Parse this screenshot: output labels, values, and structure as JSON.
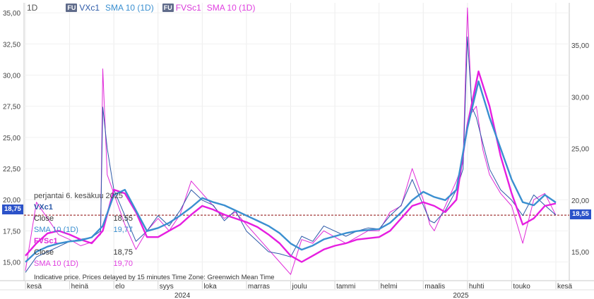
{
  "header": {
    "interval": "1D",
    "badge": "FU",
    "series1_label": "VXc1",
    "series1_sma_label": "SMA 10 (1D)",
    "series2_label": "FVSc1",
    "series2_sma_label": "SMA 10 (1D)"
  },
  "tooltip": {
    "date": "perjantai 6. kesäkuu 2025",
    "series1_name": "VXc1",
    "series1_close_label": "Close",
    "series1_close": "18,55",
    "series1_sma_label": "SMA 10 (1D)",
    "series1_sma": "19,77",
    "series2_name": "FVSc1",
    "series2_close_label": "Close",
    "series2_close": "18,75",
    "series2_sma_label": "SMA 10 (1D)",
    "series2_sma": "19,70"
  },
  "footer_note": "Indicative price. Prices delayed by 15 minutes    Time Zone: Greenwich Mean Time",
  "left_badge": "18,75",
  "right_badge": "18,55",
  "colors": {
    "vx": "#2d5aa8",
    "vx_sma": "#3a8fd0",
    "fvs": "#e02ad9",
    "fvs_sma": "#e61ee0",
    "badge": "#2b52c9",
    "dash": "#a23a3a"
  },
  "chart_data": {
    "type": "line",
    "title": "",
    "left_axis": {
      "series": "FVSc1",
      "range": [
        13.5,
        35.8
      ],
      "ticks": [
        "15,00",
        "17,50",
        "20,00",
        "22,50",
        "25,00",
        "27,50",
        "30,00",
        "32,50",
        "35,00"
      ]
    },
    "right_axis": {
      "series": "VXc1",
      "range": [
        12.2,
        39.1
      ],
      "ticks": [
        "15,00",
        "20,00",
        "25,00",
        "30,00",
        "35,00"
      ]
    },
    "x_axis": {
      "months": [
        "kesä",
        "heinä",
        "elo",
        "syys",
        "loka",
        "marras",
        "joulu",
        "tammi",
        "helmi",
        "maalis",
        "huhti",
        "touko",
        "kesä"
      ],
      "month_positions": [
        0,
        1,
        2,
        3,
        4,
        5,
        6,
        7,
        8,
        9,
        10,
        11,
        12
      ],
      "years": [
        {
          "label": "2024",
          "position": 3.55
        },
        {
          "label": "2025",
          "position": 9.85
        }
      ]
    },
    "reference_lines": {
      "fvs_last": 18.75,
      "vx_last": 18.55
    },
    "series": [
      {
        "name": "FVSc1",
        "axis": "left",
        "x": [
          0,
          0.25,
          0.5,
          0.75,
          1,
          1.25,
          1.5,
          1.7,
          1.75,
          1.85,
          2,
          2.25,
          2.5,
          2.75,
          3,
          3.25,
          3.5,
          3.75,
          4,
          4.25,
          4.5,
          4.75,
          5,
          5.25,
          5.5,
          5.75,
          6,
          6.25,
          6.5,
          6.75,
          7,
          7.25,
          7.5,
          7.75,
          8,
          8.25,
          8.5,
          8.75,
          9,
          9.15,
          9.25,
          9.5,
          9.75,
          9.9,
          10,
          10.1,
          10.2,
          10.35,
          10.5,
          10.75,
          11,
          11.25,
          11.5,
          11.75,
          12
        ],
        "values": [
          14.3,
          19.8,
          18.5,
          17.2,
          16.8,
          16.3,
          16.6,
          17.2,
          30.5,
          22.0,
          20.5,
          18.0,
          16.0,
          17.5,
          18.5,
          17.5,
          18.8,
          21.5,
          20.5,
          19.5,
          18.5,
          19.0,
          18.0,
          17.0,
          16.0,
          15.0,
          14.0,
          16.8,
          16.5,
          17.5,
          17.0,
          16.5,
          17.0,
          17.5,
          17.5,
          19.0,
          19.5,
          22.5,
          20.0,
          18.0,
          17.5,
          19.5,
          21.5,
          23.0,
          35.4,
          27.0,
          27.5,
          24.0,
          22.0,
          20.5,
          19.5,
          16.5,
          20.0,
          20.5,
          18.75
        ]
      },
      {
        "name": "SMA 10 (1D)",
        "axis": "left",
        "x": [
          0,
          0.25,
          0.5,
          0.75,
          1,
          1.25,
          1.5,
          1.75,
          2,
          2.25,
          2.5,
          2.75,
          3,
          3.25,
          3.5,
          3.75,
          4,
          4.25,
          4.5,
          4.75,
          5,
          5.25,
          5.5,
          5.75,
          6,
          6.25,
          6.5,
          6.75,
          7,
          7.25,
          7.5,
          7.75,
          8,
          8.25,
          8.5,
          8.75,
          9,
          9.25,
          9.5,
          9.75,
          10,
          10.25,
          10.5,
          10.75,
          11,
          11.25,
          11.5,
          11.75,
          12
        ],
        "values": [
          15.5,
          16.5,
          17.3,
          17.5,
          17.2,
          16.8,
          16.5,
          17.5,
          20.8,
          20.5,
          19.0,
          17.0,
          17.0,
          17.5,
          18.0,
          18.8,
          19.5,
          19.2,
          18.8,
          18.5,
          18.2,
          17.8,
          17.2,
          16.5,
          15.5,
          15.0,
          15.5,
          16.0,
          16.3,
          16.5,
          16.8,
          16.9,
          17.0,
          17.5,
          18.5,
          19.5,
          19.8,
          19.5,
          19.0,
          20.0,
          26.0,
          30.3,
          27.5,
          23.5,
          20.5,
          18.0,
          18.5,
          19.5,
          19.7
        ]
      },
      {
        "name": "VXc1",
        "axis": "right",
        "x": [
          0,
          0.25,
          0.5,
          0.75,
          1,
          1.25,
          1.5,
          1.7,
          1.75,
          1.85,
          2,
          2.25,
          2.5,
          2.75,
          3,
          3.25,
          3.5,
          3.75,
          4,
          4.25,
          4.5,
          4.75,
          5,
          5.25,
          5.5,
          5.75,
          6,
          6.25,
          6.5,
          6.75,
          7,
          7.25,
          7.5,
          7.75,
          8,
          8.25,
          8.5,
          8.75,
          9,
          9.15,
          9.25,
          9.5,
          9.75,
          9.9,
          10,
          10.1,
          10.2,
          10.35,
          10.5,
          10.75,
          11,
          11.25,
          11.5,
          11.75,
          12
        ],
        "values": [
          13.0,
          14.5,
          15.0,
          15.5,
          16.0,
          16.2,
          16.4,
          17.0,
          29.0,
          25.0,
          21.0,
          18.5,
          16.0,
          17.0,
          18.5,
          17.5,
          19.0,
          21.0,
          20.0,
          19.5,
          18.0,
          19.0,
          17.0,
          16.0,
          15.0,
          14.8,
          14.5,
          16.5,
          16.0,
          17.5,
          17.0,
          16.5,
          17.0,
          17.3,
          17.2,
          18.5,
          19.5,
          22.0,
          19.5,
          18.0,
          17.8,
          19.0,
          21.0,
          23.0,
          35.8,
          29.0,
          28.0,
          25.5,
          23.0,
          21.0,
          20.0,
          18.5,
          20.5,
          19.5,
          18.55
        ]
      },
      {
        "name": "SMA 10 (1D)",
        "axis": "right",
        "x": [
          0,
          0.25,
          0.5,
          0.75,
          1,
          1.25,
          1.5,
          1.75,
          2,
          2.25,
          2.5,
          2.75,
          3,
          3.25,
          3.5,
          3.75,
          4,
          4.25,
          4.5,
          4.75,
          5,
          5.25,
          5.5,
          5.75,
          6,
          6.25,
          6.5,
          6.75,
          7,
          7.25,
          7.5,
          7.75,
          8,
          8.25,
          8.5,
          8.75,
          9,
          9.25,
          9.5,
          9.75,
          10,
          10.25,
          10.5,
          10.75,
          11,
          11.25,
          11.5,
          11.75,
          12
        ],
        "values": [
          14.0,
          15.0,
          15.5,
          15.8,
          16.0,
          16.1,
          16.4,
          17.5,
          20.5,
          21.0,
          19.0,
          17.0,
          17.3,
          17.8,
          18.5,
          19.3,
          20.2,
          19.8,
          19.5,
          19.0,
          18.5,
          18.0,
          17.5,
          16.8,
          15.8,
          15.2,
          15.6,
          16.2,
          16.5,
          16.8,
          17.0,
          17.1,
          17.2,
          17.8,
          18.8,
          20.0,
          20.8,
          20.3,
          20.0,
          21.0,
          27.0,
          31.5,
          28.0,
          25.0,
          22.0,
          19.8,
          19.5,
          20.5,
          19.77
        ]
      }
    ]
  }
}
